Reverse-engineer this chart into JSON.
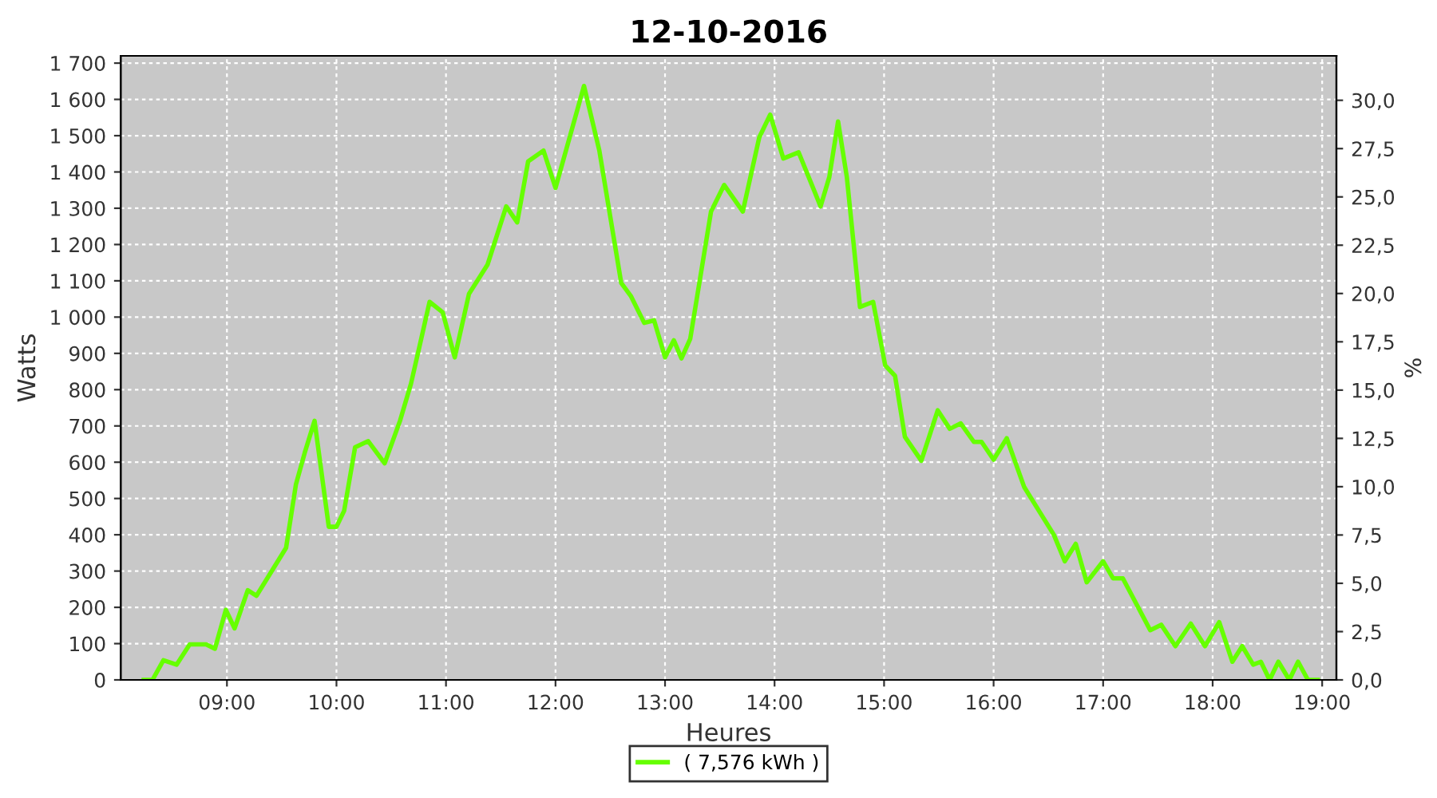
{
  "chart_data": {
    "type": "line",
    "title": "12-10-2016",
    "xlabel": "Heures",
    "ylabel": "Watts",
    "y2label": "%",
    "x": [
      8.24,
      8.32,
      8.42,
      8.54,
      8.66,
      8.81,
      8.89,
      8.99,
      9.07,
      9.19,
      9.27,
      9.36,
      9.54,
      9.63,
      9.71,
      9.8,
      9.93,
      10.0,
      10.07,
      10.17,
      10.29,
      10.44,
      10.58,
      10.68,
      10.78,
      10.85,
      10.97,
      11.08,
      11.21,
      11.38,
      11.55,
      11.65,
      11.75,
      11.89,
      12.0,
      12.26,
      12.4,
      12.6,
      12.69,
      12.81,
      12.9,
      13.0,
      13.08,
      13.15,
      13.23,
      13.42,
      13.54,
      13.71,
      13.86,
      13.96,
      14.08,
      14.22,
      14.42,
      14.5,
      14.58,
      14.66,
      14.78,
      14.9,
      15.01,
      15.1,
      15.19,
      15.34,
      15.49,
      15.6,
      15.7,
      15.82,
      15.89,
      16.0,
      16.12,
      16.28,
      16.55,
      16.65,
      16.75,
      16.85,
      17.0,
      17.09,
      17.18,
      17.43,
      17.53,
      17.66,
      17.8,
      17.93,
      18.06,
      18.18,
      18.27,
      18.37,
      18.44,
      18.52,
      18.6,
      18.7,
      18.78,
      18.87,
      18.96
    ],
    "series": [
      {
        "name": "( 7,576 kWh )",
        "color": "#66ff00",
        "values": [
          0,
          0,
          54,
          42,
          98,
          98,
          86,
          193,
          142,
          247,
          232,
          276,
          364,
          539,
          626,
          714,
          422,
          422,
          466,
          641,
          658,
          597,
          714,
          816,
          948,
          1042,
          1013,
          889,
          1064,
          1145,
          1305,
          1261,
          1429,
          1459,
          1356,
          1637,
          1459,
          1094,
          1057,
          984,
          991,
          889,
          936,
          886,
          940,
          1291,
          1364,
          1291,
          1495,
          1558,
          1437,
          1454,
          1305,
          1386,
          1539,
          1386,
          1028,
          1042,
          867,
          838,
          670,
          604,
          743,
          692,
          707,
          656,
          656,
          607,
          666,
          531,
          400,
          327,
          375,
          269,
          327,
          280,
          280,
          137,
          152,
          93,
          155,
          93,
          159,
          50,
          93,
          42,
          50,
          0,
          50,
          0,
          50,
          0,
          0
        ]
      }
    ],
    "xlim": [
      8.03,
      19.13
    ],
    "xticks": [
      {
        "value": 9,
        "label": "09:00"
      },
      {
        "value": 10,
        "label": "10:00"
      },
      {
        "value": 11,
        "label": "11:00"
      },
      {
        "value": 12,
        "label": "12:00"
      },
      {
        "value": 13,
        "label": "13:00"
      },
      {
        "value": 14,
        "label": "14:00"
      },
      {
        "value": 15,
        "label": "15:00"
      },
      {
        "value": 16,
        "label": "16:00"
      },
      {
        "value": 17,
        "label": "17:00"
      },
      {
        "value": 18,
        "label": "18:00"
      },
      {
        "value": 19,
        "label": "19:00"
      }
    ],
    "ylim": [
      0,
      1720
    ],
    "yticks": [
      0,
      100,
      200,
      300,
      400,
      500,
      600,
      700,
      800,
      900,
      {
        "value": 1000,
        "label": "1 000"
      },
      {
        "value": 1100,
        "label": "1 100"
      },
      {
        "value": 1200,
        "label": "1 200"
      },
      {
        "value": 1300,
        "label": "1 300"
      },
      {
        "value": 1400,
        "label": "1 400"
      },
      {
        "value": 1500,
        "label": "1 500"
      },
      {
        "value": 1600,
        "label": "1 600"
      },
      {
        "value": 1700,
        "label": "1 700"
      }
    ],
    "y2lim": [
      0,
      32.3
    ],
    "y2ticks": [
      {
        "value": 0,
        "label": "0,0"
      },
      {
        "value": 2.5,
        "label": "2,5"
      },
      {
        "value": 5,
        "label": "5,0"
      },
      {
        "value": 7.5,
        "label": "7,5"
      },
      {
        "value": 10,
        "label": "10,0"
      },
      {
        "value": 12.5,
        "label": "12,5"
      },
      {
        "value": 15,
        "label": "15,0"
      },
      {
        "value": 17.5,
        "label": "17,5"
      },
      {
        "value": 20,
        "label": "20,0"
      },
      {
        "value": 22.5,
        "label": "22,5"
      },
      {
        "value": 25,
        "label": "25,0"
      },
      {
        "value": 27.5,
        "label": "27,5"
      },
      {
        "value": 30,
        "label": "30,0"
      }
    ],
    "grid": true,
    "legend": "bottom",
    "marker": "none",
    "line_style": "solid"
  }
}
